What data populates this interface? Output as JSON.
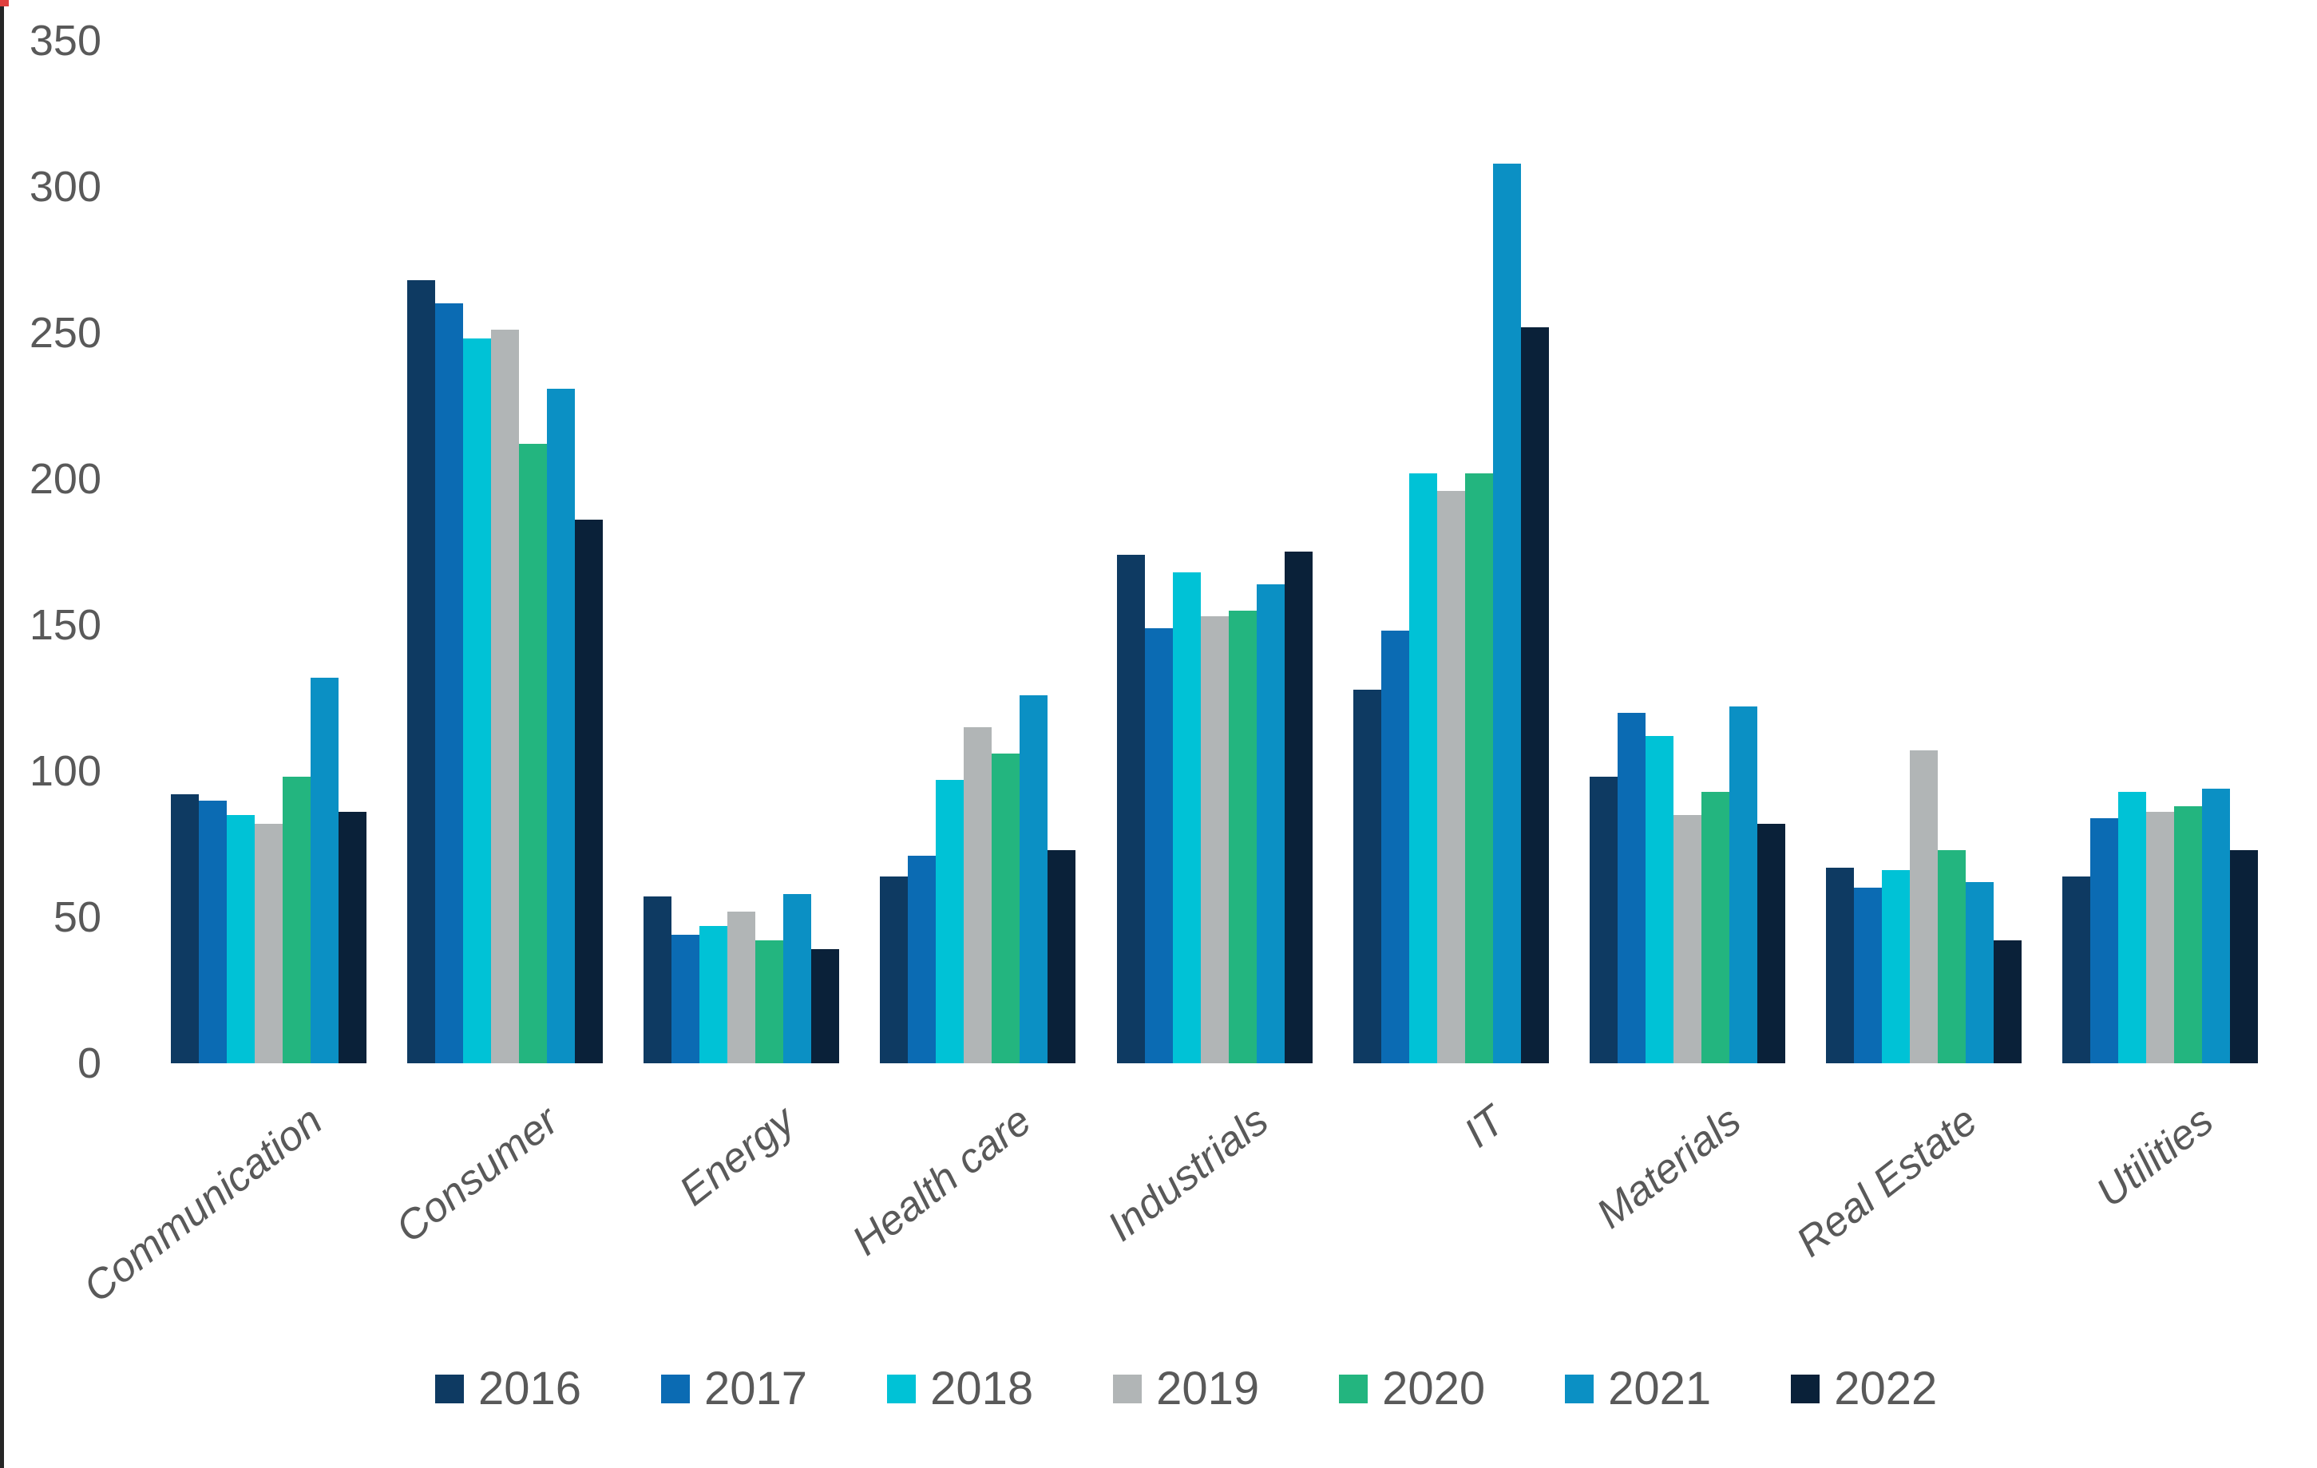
{
  "chart_data": {
    "type": "bar",
    "title": "",
    "categories": [
      "Communication",
      "Consumer",
      "Energy",
      "Health care",
      "Industrials",
      "IT",
      "Materials",
      "Real Estate",
      "Utilities"
    ],
    "series": [
      {
        "name": "2016",
        "color": "#0e3a62",
        "values": [
          92,
          268,
          57,
          64,
          174,
          128,
          98,
          67,
          64
        ]
      },
      {
        "name": "2017",
        "color": "#0b6bb3",
        "values": [
          90,
          260,
          44,
          71,
          149,
          148,
          120,
          60,
          84
        ]
      },
      {
        "name": "2018",
        "color": "#00c2d6",
        "values": [
          85,
          248,
          47,
          97,
          168,
          202,
          112,
          66,
          93
        ]
      },
      {
        "name": "2019",
        "color": "#b1b5b6",
        "values": [
          82,
          251,
          52,
          115,
          153,
          196,
          85,
          107,
          86
        ]
      },
      {
        "name": "2020",
        "color": "#23b57f",
        "values": [
          98,
          212,
          42,
          106,
          155,
          202,
          93,
          73,
          88
        ]
      },
      {
        "name": "2021",
        "color": "#0b90c4",
        "values": [
          132,
          231,
          58,
          126,
          164,
          308,
          122,
          62,
          94
        ]
      },
      {
        "name": "2022",
        "color": "#0a2139",
        "values": [
          86,
          186,
          39,
          73,
          175,
          252,
          82,
          42,
          73
        ]
      }
    ],
    "y_axis": {
      "min": 0,
      "max": 350,
      "step": 50,
      "tick_labels": [
        "0",
        "50",
        "100",
        "150",
        "200",
        "250",
        "300",
        "350"
      ]
    },
    "x_axis": {
      "label_style": "italic, rotated"
    },
    "legend_position": "bottom",
    "grid": false,
    "axis_text_color": "#595959",
    "baseline_color": "#d9d9d9"
  },
  "artifacts": {
    "left_edge_color": "#262626",
    "corner_dot_color": "#e0403e"
  }
}
